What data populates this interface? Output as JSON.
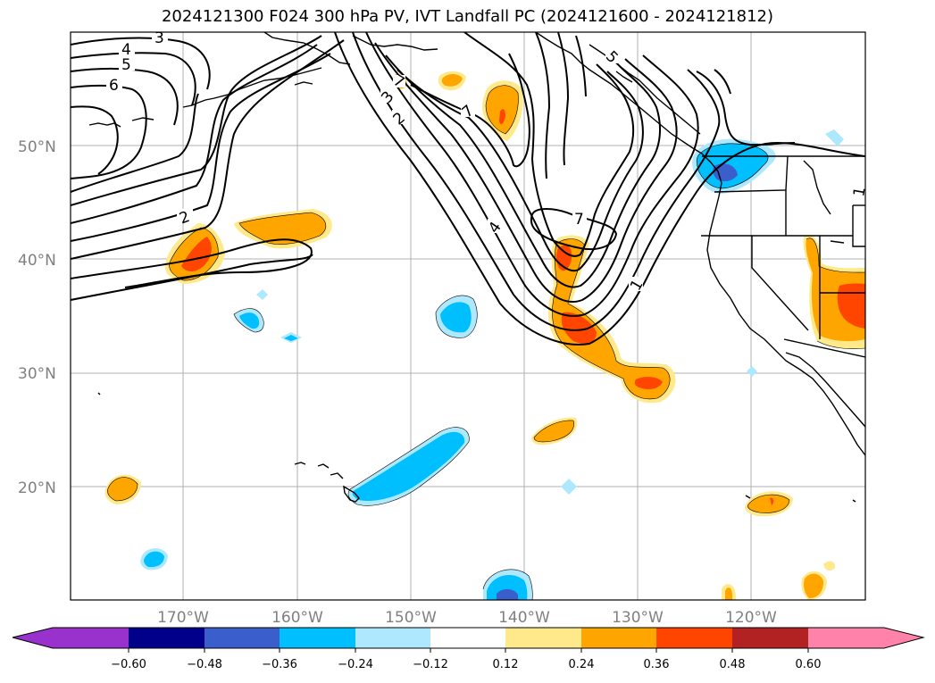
{
  "title": "2024121300 F024 300 hPa PV, IVT Landfall PC (2024121600 - 2024121812)",
  "map": {
    "lat_labels": [
      "50°N",
      "40°N",
      "30°N",
      "20°N"
    ],
    "lon_labels": [
      "170°W",
      "160°W",
      "150°W",
      "140°W",
      "130°W",
      "120°W"
    ],
    "contour_labels": [
      "3",
      "4",
      "5",
      "6",
      "2",
      "3",
      "2",
      "7",
      "7",
      "4",
      "7",
      "1",
      "5",
      "1"
    ],
    "colors": {
      "pos_light": "#ffe98b",
      "pos_mid": "#ffa500",
      "pos_strong": "#ff4500",
      "pos_dark": "#b22222",
      "neg_light": "#ade8ff",
      "neg_mid": "#00bfff",
      "neg_strong": "#3a5fcd",
      "neg_dark": "#00008b",
      "coast": "#000000",
      "grid": "#b0b0b0"
    }
  },
  "colorbar": {
    "ticks": [
      "−0.60",
      "−0.48",
      "−0.36",
      "−0.24",
      "−0.12",
      "0.12",
      "0.24",
      "0.36",
      "0.48",
      "0.60"
    ],
    "colors": [
      "#9932cc",
      "#00008b",
      "#3a5fcd",
      "#00bfff",
      "#ade8ff",
      "#ffffff",
      "#ffe98b",
      "#ffa500",
      "#ff4500",
      "#b22222",
      "#ff82ab"
    ]
  }
}
